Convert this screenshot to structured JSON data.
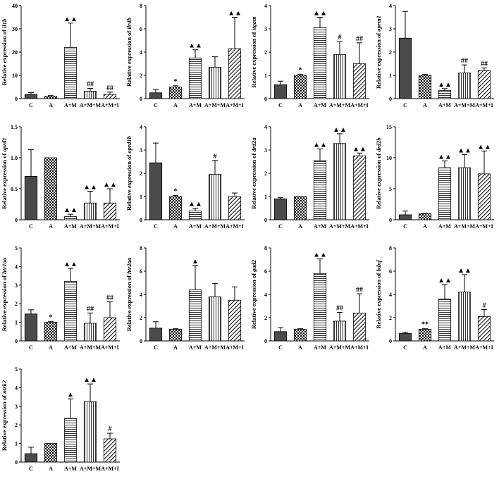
{
  "categories": [
    "C",
    "A",
    "A+M",
    "A+M+M",
    "A+M+I"
  ],
  "bar_patterns": [
    "dark",
    "checker",
    "hlines",
    "vlines",
    "diag"
  ],
  "colors": {
    "dark": "#4a4a4a",
    "ink": "#000000",
    "background": "#ffffff"
  },
  "ylabel_prefix": "Relative expression of ",
  "chart_data": [
    {
      "type": "bar",
      "gene": "il1b",
      "ylim": [
        0,
        40
      ],
      "ticks": [
        "0",
        "10",
        "20",
        "30",
        "40"
      ],
      "tick_values": [
        0,
        10,
        20,
        30,
        40
      ],
      "values": [
        1.8,
        1.0,
        22.0,
        3.2,
        1.8
      ],
      "errors": [
        0.8,
        0.3,
        10.5,
        1.2,
        1.0
      ],
      "sig": [
        "",
        "",
        "▲▲",
        "##",
        "##"
      ]
    },
    {
      "type": "bar",
      "gene": "ilr4b",
      "ylim": [
        0,
        8
      ],
      "ticks": [
        "0",
        "2",
        "4",
        "6",
        "8"
      ],
      "tick_values": [
        0,
        2,
        4,
        6,
        8
      ],
      "values": [
        0.5,
        1.0,
        3.5,
        2.7,
        4.3
      ],
      "errors": [
        0.3,
        0.1,
        0.7,
        0.9,
        2.7
      ],
      "sig": [
        "",
        "*",
        "▲▲",
        "",
        "▲▲"
      ]
    },
    {
      "type": "bar",
      "gene": "itgam",
      "ylim": [
        0,
        4
      ],
      "ticks": [
        "0",
        "1",
        "2",
        "3",
        "4"
      ],
      "tick_values": [
        0,
        1,
        2,
        3,
        4
      ],
      "values": [
        0.6,
        1.0,
        3.05,
        1.9,
        1.5
      ],
      "errors": [
        0.15,
        0.05,
        0.45,
        0.55,
        0.9
      ],
      "sig": [
        "",
        "*",
        "▲▲",
        "#",
        "##"
      ]
    },
    {
      "type": "bar",
      "gene": "oprm1",
      "ylim": [
        0,
        4
      ],
      "ticks": [
        "0",
        "1",
        "2",
        "3",
        "4"
      ],
      "tick_values": [
        0,
        1,
        2,
        3,
        4
      ],
      "values": [
        2.6,
        1.0,
        0.35,
        1.1,
        1.2
      ],
      "errors": [
        1.15,
        0.05,
        0.08,
        0.35,
        0.12
      ],
      "sig": [
        "",
        "",
        "▲▲",
        "##",
        "##"
      ]
    },
    {
      "type": "bar",
      "gene": "oprd1",
      "ylim": [
        0,
        1.5
      ],
      "ticks": [
        "0",
        "0.5",
        "1.0",
        "1.5"
      ],
      "tick_values": [
        0,
        0.5,
        1.0,
        1.5
      ],
      "values": [
        0.7,
        1.0,
        0.05,
        0.27,
        0.27
      ],
      "errors": [
        0.43,
        0.0,
        0.04,
        0.19,
        0.23
      ],
      "sig": [
        "",
        "",
        "▲▲",
        "▲▲",
        "▲▲"
      ]
    },
    {
      "type": "bar",
      "gene": "oprd1b",
      "ylim": [
        0,
        4
      ],
      "ticks": [
        "0",
        "1",
        "2",
        "3",
        "4"
      ],
      "tick_values": [
        0,
        1,
        2,
        3,
        4
      ],
      "values": [
        2.45,
        1.0,
        0.38,
        1.95,
        1.0
      ],
      "errors": [
        0.85,
        0.05,
        0.12,
        0.6,
        0.15
      ],
      "sig": [
        "",
        "*",
        "▲▲",
        "#",
        ""
      ]
    },
    {
      "type": "bar",
      "gene": "drd2a",
      "ylim": [
        0,
        4
      ],
      "ticks": [
        "0",
        "1",
        "2",
        "3",
        "4"
      ],
      "tick_values": [
        0,
        1,
        2,
        3,
        4
      ],
      "values": [
        0.9,
        1.0,
        2.55,
        3.28,
        2.75
      ],
      "errors": [
        0.05,
        0.0,
        0.5,
        0.42,
        0.12
      ],
      "sig": [
        "",
        "",
        "▲▲",
        "▲▲",
        "▲▲"
      ]
    },
    {
      "type": "bar",
      "gene": "drd2b",
      "ylim": [
        0,
        15
      ],
      "ticks": [
        "0",
        "5",
        "10",
        "15"
      ],
      "tick_values": [
        0,
        5,
        10,
        15
      ],
      "values": [
        0.8,
        1.0,
        8.4,
        8.4,
        7.4
      ],
      "errors": [
        0.6,
        0.05,
        1.1,
        2.1,
        3.7
      ],
      "sig": [
        "",
        "",
        "▲▲",
        "▲▲",
        "▲▲"
      ]
    },
    {
      "type": "bar",
      "gene": "htr1aa",
      "ylim": [
        0,
        5
      ],
      "ticks": [
        "0",
        "1",
        "2",
        "3",
        "4",
        "5"
      ],
      "tick_values": [
        0,
        1,
        2,
        3,
        4,
        5
      ],
      "values": [
        1.45,
        1.0,
        3.2,
        0.95,
        1.25
      ],
      "errors": [
        0.22,
        0.05,
        0.7,
        0.55,
        0.85
      ],
      "sig": [
        "",
        "*",
        "▲▲",
        "##",
        "##"
      ]
    },
    {
      "type": "bar",
      "gene": "htr2aa",
      "ylim": [
        0,
        8
      ],
      "ticks": [
        "0",
        "2",
        "4",
        "6",
        "8"
      ],
      "tick_values": [
        0,
        2,
        4,
        6,
        8
      ],
      "values": [
        1.1,
        1.0,
        4.4,
        3.8,
        3.5
      ],
      "errors": [
        0.55,
        0.05,
        2.1,
        1.15,
        1.15
      ],
      "sig": [
        "",
        "",
        "▲",
        "",
        ""
      ]
    },
    {
      "type": "bar",
      "gene": "gad2",
      "ylim": [
        0,
        8
      ],
      "ticks": [
        "0",
        "2",
        "4",
        "6",
        "8"
      ],
      "tick_values": [
        0,
        2,
        4,
        6,
        8
      ],
      "values": [
        0.8,
        1.0,
        5.8,
        1.7,
        2.4
      ],
      "errors": [
        0.35,
        0.05,
        1.25,
        0.75,
        1.65
      ],
      "sig": [
        "",
        "",
        "▲▲",
        "##",
        "##"
      ]
    },
    {
      "type": "bar",
      "gene": "bdnf",
      "ylim": [
        0,
        8
      ],
      "ticks": [
        "0",
        "2",
        "4",
        "6",
        "8"
      ],
      "tick_values": [
        0,
        2,
        4,
        6,
        8
      ],
      "values": [
        0.65,
        1.0,
        3.6,
        4.2,
        2.1
      ],
      "errors": [
        0.1,
        0.05,
        1.25,
        1.5,
        0.6
      ],
      "sig": [
        "",
        "**",
        "▲▲",
        "▲▲",
        "#"
      ]
    },
    {
      "type": "bar",
      "gene": "ntrk2",
      "ylim": [
        0,
        5
      ],
      "ticks": [
        "0",
        "1",
        "2",
        "3",
        "4",
        "5"
      ],
      "tick_values": [
        0,
        1,
        2,
        3,
        4,
        5
      ],
      "values": [
        0.45,
        1.0,
        2.35,
        3.25,
        1.25
      ],
      "errors": [
        0.35,
        0.0,
        1.05,
        0.95,
        0.3
      ],
      "sig": [
        "",
        "",
        "▲",
        "▲▲",
        "#"
      ]
    }
  ]
}
